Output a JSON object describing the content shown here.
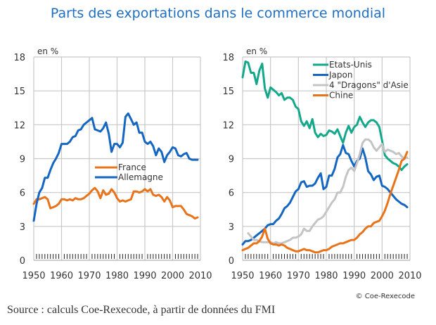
{
  "title": "Parts des exportations dans le commerce mondial",
  "source": "Source : calculs Coe-Rexecode, à partir de données du FMI",
  "copyright": "© Coe-Rexecode",
  "chart_data": [
    {
      "type": "line",
      "unit_label": "en %",
      "xlim": [
        1950,
        2010
      ],
      "ylim": [
        0,
        18
      ],
      "xticks": [
        1950,
        1960,
        1970,
        1980,
        1990,
        2000,
        2010
      ],
      "yticks": [
        0,
        3,
        6,
        9,
        12,
        15,
        18
      ],
      "grid": true,
      "legend_position": "center",
      "series": [
        {
          "name": "France",
          "color": "#e8731a",
          "x": [
            1950,
            1951,
            1952,
            1953,
            1954,
            1955,
            1956,
            1957,
            1958,
            1959,
            1960,
            1961,
            1962,
            1963,
            1964,
            1965,
            1966,
            1967,
            1968,
            1969,
            1970,
            1971,
            1972,
            1973,
            1974,
            1975,
            1976,
            1977,
            1978,
            1979,
            1980,
            1981,
            1982,
            1983,
            1984,
            1985,
            1986,
            1987,
            1988,
            1989,
            1990,
            1991,
            1992,
            1993,
            1994,
            1995,
            1996,
            1997,
            1998,
            1999,
            2000,
            2001,
            2002,
            2003,
            2004,
            2005,
            2006,
            2007,
            2008,
            2009
          ],
          "values": [
            5.0,
            5.4,
            5.4,
            5.5,
            5.6,
            5.4,
            4.6,
            4.7,
            4.8,
            5.0,
            5.4,
            5.4,
            5.3,
            5.4,
            5.3,
            5.5,
            5.4,
            5.4,
            5.5,
            5.7,
            5.9,
            6.2,
            6.4,
            6.1,
            5.5,
            6.2,
            5.8,
            5.9,
            6.3,
            6.0,
            5.5,
            5.2,
            5.3,
            5.2,
            5.3,
            5.4,
            6.1,
            6.1,
            6.0,
            6.1,
            6.3,
            6.1,
            6.3,
            5.8,
            5.7,
            5.8,
            5.6,
            5.2,
            5.6,
            5.3,
            4.7,
            4.8,
            4.8,
            4.8,
            4.5,
            4.1,
            4.0,
            3.9,
            3.7,
            3.8
          ]
        },
        {
          "name": "Allemagne",
          "color": "#1466c2",
          "x": [
            1950,
            1951,
            1952,
            1953,
            1954,
            1955,
            1956,
            1957,
            1958,
            1959,
            1960,
            1961,
            1962,
            1963,
            1964,
            1965,
            1966,
            1967,
            1968,
            1969,
            1970,
            1971,
            1972,
            1973,
            1974,
            1975,
            1976,
            1977,
            1978,
            1979,
            1980,
            1981,
            1982,
            1983,
            1984,
            1985,
            1986,
            1987,
            1988,
            1989,
            1990,
            1991,
            1992,
            1993,
            1994,
            1995,
            1996,
            1997,
            1998,
            1999,
            2000,
            2001,
            2002,
            2003,
            2004,
            2005,
            2006,
            2007,
            2008,
            2009
          ],
          "values": [
            3.5,
            5.0,
            6.0,
            6.4,
            7.3,
            7.3,
            8.0,
            8.6,
            9.0,
            9.5,
            10.3,
            10.3,
            10.3,
            10.5,
            10.9,
            11.0,
            11.5,
            11.6,
            12.0,
            12.2,
            12.4,
            12.6,
            11.6,
            11.5,
            11.4,
            11.7,
            12.2,
            11.2,
            9.6,
            10.3,
            10.3,
            10.0,
            10.4,
            12.7,
            13.0,
            12.5,
            12.0,
            12.2,
            11.3,
            11.3,
            10.5,
            10.3,
            10.5,
            10.1,
            9.3,
            9.9,
            9.6,
            8.7,
            9.3,
            9.6,
            10.0,
            9.9,
            9.3,
            9.2,
            9.4,
            9.5,
            9.0,
            8.9,
            8.9,
            8.9
          ]
        }
      ]
    },
    {
      "type": "line",
      "unit_label": "en %",
      "xlim": [
        1950,
        2010
      ],
      "ylim": [
        0,
        18
      ],
      "xticks": [
        1950,
        1960,
        1970,
        1980,
        1990,
        2000,
        2010
      ],
      "yticks": [
        0,
        3,
        6,
        9,
        12,
        15,
        18
      ],
      "grid": true,
      "legend_position": "top-right",
      "series": [
        {
          "name": "Etats-Unis",
          "color": "#14a88a",
          "x": [
            1950,
            1951,
            1952,
            1953,
            1954,
            1955,
            1956,
            1957,
            1958,
            1959,
            1960,
            1961,
            1962,
            1963,
            1964,
            1965,
            1966,
            1967,
            1968,
            1969,
            1970,
            1971,
            1972,
            1973,
            1974,
            1975,
            1976,
            1977,
            1978,
            1979,
            1980,
            1981,
            1982,
            1983,
            1984,
            1985,
            1986,
            1987,
            1988,
            1989,
            1990,
            1991,
            1992,
            1993,
            1994,
            1995,
            1996,
            1997,
            1998,
            1999,
            2000,
            2001,
            2002,
            2003,
            2004,
            2005,
            2006,
            2007,
            2008,
            2009
          ],
          "values": [
            16.2,
            17.6,
            17.5,
            16.6,
            16.6,
            15.6,
            16.8,
            17.4,
            15.2,
            14.4,
            15.3,
            15.1,
            14.9,
            14.6,
            14.8,
            14.2,
            14.4,
            14.4,
            14.2,
            13.6,
            13.4,
            12.3,
            11.9,
            12.3,
            11.7,
            12.5,
            11.3,
            10.9,
            11.2,
            11.0,
            11.1,
            11.5,
            11.4,
            11.2,
            11.6,
            11.0,
            10.4,
            11.3,
            11.9,
            11.3,
            11.8,
            12.0,
            12.7,
            12.2,
            11.8,
            12.2,
            12.4,
            12.4,
            12.2,
            11.8,
            10.6,
            9.3,
            9.0,
            8.8,
            8.6,
            8.5,
            8.3,
            8.0,
            8.3,
            8.5
          ]
        },
        {
          "name": "Japon",
          "color": "#1466c2",
          "x": [
            1950,
            1951,
            1952,
            1953,
            1954,
            1955,
            1956,
            1957,
            1958,
            1959,
            1960,
            1961,
            1962,
            1963,
            1964,
            1965,
            1966,
            1967,
            1968,
            1969,
            1970,
            1971,
            1972,
            1973,
            1974,
            1975,
            1976,
            1977,
            1978,
            1979,
            1980,
            1981,
            1982,
            1983,
            1984,
            1985,
            1986,
            1987,
            1988,
            1989,
            1990,
            1991,
            1992,
            1993,
            1994,
            1995,
            1996,
            1997,
            1998,
            1999,
            2000,
            2001,
            2002,
            2003,
            2004,
            2005,
            2006,
            2007,
            2008,
            2009
          ],
          "values": [
            1.4,
            1.7,
            1.7,
            1.8,
            2.0,
            2.2,
            2.4,
            2.6,
            2.8,
            3.1,
            3.2,
            3.2,
            3.5,
            3.7,
            4.1,
            4.6,
            4.8,
            5.1,
            5.6,
            6.1,
            6.3,
            6.9,
            7.0,
            6.5,
            6.6,
            6.6,
            6.8,
            7.3,
            7.7,
            6.3,
            6.5,
            7.5,
            7.5,
            8.1,
            9.1,
            9.4,
            10.2,
            9.5,
            9.4,
            8.8,
            8.3,
            8.8,
            9.0,
            9.9,
            9.1,
            7.9,
            7.6,
            7.1,
            7.4,
            7.5,
            6.6,
            6.5,
            6.3,
            6.0,
            5.7,
            5.4,
            5.2,
            5.0,
            4.9,
            4.7
          ]
        },
        {
          "name": "4 \"Dragons\" d'Asie",
          "color": "#c4c4c4",
          "x": [
            1952,
            1953,
            1954,
            1955,
            1956,
            1957,
            1958,
            1959,
            1960,
            1961,
            1962,
            1963,
            1964,
            1965,
            1966,
            1967,
            1968,
            1969,
            1970,
            1971,
            1972,
            1973,
            1974,
            1975,
            1976,
            1977,
            1978,
            1979,
            1980,
            1981,
            1982,
            1983,
            1984,
            1985,
            1986,
            1987,
            1988,
            1989,
            1990,
            1991,
            1992,
            1993,
            1994,
            1995,
            1996,
            1997,
            1998,
            1999,
            2000,
            2001,
            2002,
            2003,
            2004,
            2005,
            2006,
            2007,
            2008,
            2009
          ],
          "values": [
            2.4,
            2.1,
            1.8,
            1.8,
            1.7,
            1.6,
            1.6,
            1.6,
            1.6,
            1.5,
            1.6,
            1.5,
            1.5,
            1.6,
            1.7,
            1.8,
            2.0,
            2.0,
            2.1,
            2.3,
            2.8,
            2.6,
            2.6,
            3.0,
            3.3,
            3.6,
            3.7,
            3.9,
            4.3,
            4.7,
            5.1,
            5.4,
            6.0,
            6.0,
            6.5,
            7.4,
            8.0,
            8.2,
            7.9,
            8.6,
            9.4,
            10.4,
            10.7,
            10.7,
            10.5,
            10.0,
            9.7,
            10.0,
            10.3,
            9.6,
            9.8,
            9.7,
            9.6,
            9.4,
            9.5,
            9.2,
            9.0,
            9.1
          ]
        },
        {
          "name": "Chine",
          "color": "#e8731a",
          "x": [
            1950,
            1951,
            1952,
            1953,
            1954,
            1955,
            1956,
            1957,
            1958,
            1959,
            1960,
            1961,
            1962,
            1963,
            1964,
            1965,
            1966,
            1967,
            1968,
            1969,
            1970,
            1971,
            1972,
            1973,
            1974,
            1975,
            1976,
            1977,
            1978,
            1979,
            1980,
            1981,
            1982,
            1983,
            1984,
            1985,
            1986,
            1987,
            1988,
            1989,
            1990,
            1991,
            1992,
            1993,
            1994,
            1995,
            1996,
            1997,
            1998,
            1999,
            2000,
            2001,
            2002,
            2003,
            2004,
            2005,
            2006,
            2007,
            2008,
            2009
          ],
          "values": [
            0.9,
            1.0,
            1.1,
            1.3,
            1.5,
            1.5,
            1.7,
            2.1,
            2.8,
            1.9,
            1.5,
            1.4,
            1.4,
            1.3,
            1.4,
            1.3,
            1.1,
            1.0,
            0.9,
            0.8,
            0.8,
            0.9,
            1.0,
            0.9,
            0.9,
            0.8,
            0.7,
            0.7,
            0.8,
            0.9,
            0.9,
            1.0,
            1.2,
            1.3,
            1.4,
            1.5,
            1.5,
            1.6,
            1.7,
            1.8,
            1.8,
            2.0,
            2.3,
            2.5,
            2.8,
            3.0,
            3.0,
            3.3,
            3.4,
            3.5,
            3.9,
            4.4,
            5.1,
            5.9,
            6.6,
            7.3,
            8.0,
            8.8,
            9.0,
            9.6
          ]
        }
      ]
    }
  ]
}
